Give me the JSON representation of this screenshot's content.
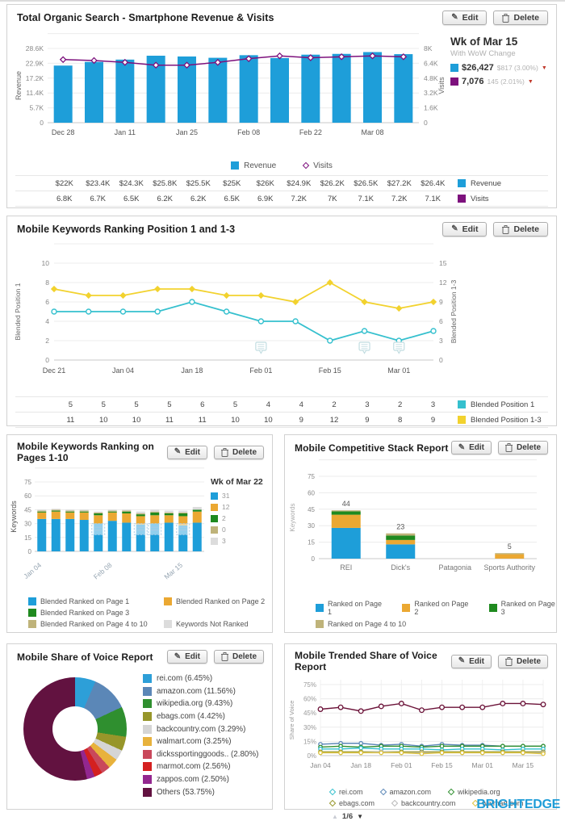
{
  "buttons": {
    "edit": "Edit",
    "delete": "Delete"
  },
  "icons": {
    "pencil": "✎",
    "down_arrow": "▼",
    "up_arrow": "▲"
  },
  "brand": {
    "name": "BRIGHTEDGE",
    "color": "#1e9cd7"
  },
  "panel1": {
    "title": "Total Organic Search - Smartphone Revenue & Visits",
    "summary": {
      "week": "Wk of Mar 15",
      "subtitle": "With WoW Change",
      "revenue_value": "$26,427",
      "revenue_change": "$817 (3.00%)",
      "visits_value": "7,076",
      "visits_change": "145 (2.01%)"
    },
    "legend": [
      "Revenue",
      "Visits"
    ],
    "table": {
      "revenue_row": [
        "$22K",
        "$23.4K",
        "$24.3K",
        "$25.8K",
        "$25.5K",
        "$25K",
        "$26K",
        "$24.9K",
        "$26.2K",
        "$26.5K",
        "$27.2K",
        "$26.4K"
      ],
      "visits_row": [
        "6.8K",
        "6.7K",
        "6.5K",
        "6.2K",
        "6.2K",
        "6.5K",
        "6.9K",
        "7.2K",
        "7K",
        "7.1K",
        "7.2K",
        "7.1K"
      ],
      "revenue_label": "Revenue",
      "visits_label": "Visits"
    }
  },
  "panel2": {
    "title": "Mobile Keywords Ranking Position 1 and 1-3",
    "legend": [
      "Blended Position 1",
      "Blended Position 1-3"
    ],
    "table": {
      "row1": [
        "5",
        "5",
        "5",
        "5",
        "6",
        "5",
        "4",
        "4",
        "2",
        "3",
        "2",
        "3"
      ],
      "row2": [
        "11",
        "10",
        "10",
        "11",
        "11",
        "10",
        "10",
        "9",
        "12",
        "9",
        "8",
        "9"
      ]
    }
  },
  "panel3": {
    "title": "Mobile Keywords Ranking on Pages 1-10",
    "side_legend_week": "Wk of Mar 22",
    "legend": [
      "Blended Ranked on Page 1",
      "Blended Ranked on Page 2",
      "Blended Ranked on Page 3",
      "Blended Ranked on Page 4 to 10",
      "Keywords Not Ranked"
    ]
  },
  "panel4": {
    "title": "Mobile Competitive Stack Report",
    "legend": [
      "Ranked on Page 1",
      "Ranked on Page 2",
      "Ranked on Page 3",
      "Ranked on Page 4 to 10"
    ]
  },
  "panel5": {
    "title": "Mobile Share of Voice Report"
  },
  "panel6": {
    "title": "Mobile Trended Share of Voice Report",
    "pagination": "1/6",
    "legend_order": [
      "rei.com",
      "amazon.com",
      "wikipedia.org",
      "ebags.com",
      "backcountry.com",
      "walmart.com"
    ]
  },
  "chart_data": [
    {
      "type": "bar",
      "title": "Total Organic Search - Smartphone Revenue & Visits",
      "x_tick_labels": [
        "Dec 28",
        "Jan 11",
        "Jan 25",
        "Feb 08",
        "Feb 22",
        "Mar 08"
      ],
      "series": [
        {
          "name": "Revenue",
          "type": "bar",
          "axis": "left",
          "color": "#1e9ed9",
          "values": [
            22,
            23.4,
            24.3,
            25.8,
            25.5,
            25,
            26,
            24.9,
            26.2,
            26.5,
            27.2,
            26.4
          ]
        },
        {
          "name": "Visits",
          "type": "line",
          "axis": "right",
          "color": "#7d117d",
          "values": [
            6.8,
            6.7,
            6.5,
            6.2,
            6.2,
            6.5,
            6.9,
            7.2,
            7,
            7.1,
            7.2,
            7.1
          ]
        }
      ],
      "left_axis": {
        "label": "Revenue",
        "ticks": [
          "28.6K",
          "22.9K",
          "17.2K",
          "11.4K",
          "5.7K",
          "0"
        ],
        "max": 28.6
      },
      "right_axis": {
        "label": "Visits",
        "ticks": [
          "8K",
          "6.4K",
          "4.8K",
          "3.2K",
          "1.6K",
          "0"
        ],
        "max": 8
      }
    },
    {
      "type": "line",
      "title": "Mobile Keywords Ranking Position 1 and 1-3",
      "x_tick_labels": [
        "Dec 21",
        "Jan 04",
        "Jan 18",
        "Feb 01",
        "Feb 15",
        "Mar 01"
      ],
      "series": [
        {
          "name": "Blended Position 1",
          "axis": "left",
          "color": "#35c0ce",
          "values": [
            5,
            5,
            5,
            5,
            6,
            5,
            4,
            4,
            2,
            3,
            2,
            3
          ]
        },
        {
          "name": "Blended Position 1-3",
          "axis": "right",
          "color": "#f2d22e",
          "values": [
            11,
            10,
            10,
            11,
            11,
            10,
            10,
            9,
            12,
            9,
            8,
            9
          ]
        }
      ],
      "left_axis": {
        "label": "Blended Position 1",
        "ticks": [
          "10",
          "8",
          "6",
          "4",
          "2",
          "0"
        ],
        "max": 10
      },
      "right_axis": {
        "label": "Blended Position 1-3",
        "ticks": [
          "15",
          "12",
          "9",
          "6",
          "3",
          "0"
        ],
        "max": 15
      },
      "note_indices": [
        6,
        9,
        10
      ]
    },
    {
      "type": "bar",
      "title": "Mobile Keywords Ranking on Pages 1-10",
      "ylabel": "Keywords",
      "yticks": [
        "75",
        "60",
        "45",
        "30",
        "15",
        "0"
      ],
      "ymax": 75,
      "x_tick_labels": [
        {
          "label": "Jan 04",
          "index": 0
        },
        {
          "label": "Feb 08",
          "index": 5
        },
        {
          "label": "Mar 15",
          "index": 10
        }
      ],
      "series": [
        {
          "name": "Blended Ranked on Page 1",
          "color": "#1e9ed9",
          "values": [
            35,
            35,
            35,
            34,
            30,
            33,
            31,
            29,
            30,
            31,
            28,
            31
          ]
        },
        {
          "name": "Blended Ranked on Page 2",
          "color": "#eba832",
          "values": [
            7,
            8,
            7,
            8,
            9,
            9,
            10,
            9,
            9,
            8,
            10,
            12
          ]
        },
        {
          "name": "Blended Ranked on Page 3",
          "color": "#1f8a1f",
          "values": [
            1,
            1,
            1,
            1,
            2,
            1,
            2,
            2,
            3,
            2,
            3,
            2
          ]
        },
        {
          "name": "Blended Ranked on Page 4 to 10",
          "color": "#bfb37a",
          "values": [
            1,
            1,
            1,
            1,
            1,
            1,
            1,
            1,
            1,
            1,
            1,
            0
          ]
        },
        {
          "name": "Keywords Not Ranked",
          "color": "#dcdcdc",
          "values": [
            1,
            1,
            1,
            1,
            1,
            1,
            1,
            2,
            2,
            2,
            2,
            3
          ]
        }
      ],
      "annotation_indices": [
        4,
        7,
        8,
        10
      ],
      "side_legend_values": [
        "31",
        "12",
        "2",
        "0",
        "3"
      ]
    },
    {
      "type": "bar",
      "title": "Mobile Competitive Stack Report",
      "ylabel": "Keywords",
      "yticks": [
        "75",
        "60",
        "45",
        "30",
        "15",
        "0"
      ],
      "ymax": 75,
      "categories": [
        "REI",
        "Dick's",
        "Patagonia",
        "Sports Authority"
      ],
      "totals": [
        "44",
        "23",
        "",
        "5"
      ],
      "series": [
        {
          "name": "Ranked on Page 1",
          "color": "#1e9ed9",
          "values": [
            28,
            13,
            0,
            0
          ]
        },
        {
          "name": "Ranked on Page 2",
          "color": "#eba832",
          "values": [
            12,
            4,
            0,
            4
          ]
        },
        {
          "name": "Ranked on Page 3",
          "color": "#1f8a1f",
          "values": [
            3,
            4,
            0,
            0
          ]
        },
        {
          "name": "Ranked on Page 4 to 10",
          "color": "#bfb37a",
          "values": [
            1,
            2,
            0,
            1
          ]
        }
      ]
    },
    {
      "type": "pie",
      "title": "Mobile Share of Voice Report",
      "slices": [
        {
          "label": "rei.com (6.45%)",
          "value": 6.45,
          "color": "#2d9fd8"
        },
        {
          "label": "amazon.com (11.56%)",
          "value": 11.56,
          "color": "#5b87b7"
        },
        {
          "label": "wikipedia.org (9.43%)",
          "value": 9.43,
          "color": "#2f8f2f"
        },
        {
          "label": "ebags.com (4.42%)",
          "value": 4.42,
          "color": "#97962a"
        },
        {
          "label": "backcountry.com (3.29%)",
          "value": 3.29,
          "color": "#d5d5d5"
        },
        {
          "label": "walmart.com (3.25%)",
          "value": 3.25,
          "color": "#e8b23c"
        },
        {
          "label": "dickssportinggoods.. (2.80%)",
          "value": 2.8,
          "color": "#c9485b"
        },
        {
          "label": "marmot.com (2.56%)",
          "value": 2.56,
          "color": "#d42020"
        },
        {
          "label": "zappos.com (2.50%)",
          "value": 2.5,
          "color": "#93278f"
        },
        {
          "label": "Others (53.75%)",
          "value": 53.75,
          "color": "#621240"
        }
      ]
    },
    {
      "type": "line",
      "title": "Mobile Trended Share of Voice Report",
      "ylabel": "Share of Voice",
      "yticks": [
        "75%",
        "60%",
        "45%",
        "30%",
        "15%",
        "0%"
      ],
      "ymax": 75,
      "x_tick_labels": [
        "Jan 04",
        "Jan 18",
        "Feb 01",
        "Feb 15",
        "Mar 01",
        "Mar 15"
      ],
      "series": [
        {
          "name": "Others",
          "color": "#6b1238",
          "in_legend": false,
          "values": [
            49,
            51,
            47,
            52,
            55,
            48,
            51,
            51,
            51,
            55,
            55,
            54
          ]
        },
        {
          "name": "amazon.com",
          "color": "#5b87b7",
          "values": [
            12,
            13,
            13,
            11,
            12,
            10,
            12,
            11,
            11,
            10,
            10,
            10
          ]
        },
        {
          "name": "wikipedia.org",
          "color": "#2f8f2f",
          "values": [
            9,
            10,
            9,
            10,
            10,
            9,
            10,
            10,
            10,
            10,
            10,
            10
          ]
        },
        {
          "name": "rei.com",
          "color": "#35c0ce",
          "values": [
            7,
            7,
            8,
            7,
            7,
            7,
            6,
            7,
            7,
            6,
            7,
            7
          ]
        },
        {
          "name": "ebags.com",
          "color": "#97962a",
          "values": [
            4,
            4,
            4,
            4,
            4,
            4,
            4,
            4,
            4,
            4,
            4,
            4
          ]
        },
        {
          "name": "backcountry.com",
          "color": "#b8b8b8",
          "values": [
            3,
            3,
            3,
            4,
            3,
            3,
            3,
            3,
            3,
            3,
            3,
            3
          ]
        },
        {
          "name": "walmart.com",
          "color": "#dec33a",
          "values": [
            3,
            3,
            3,
            3,
            3,
            2,
            3,
            3,
            3,
            3,
            3,
            2
          ]
        }
      ]
    }
  ]
}
